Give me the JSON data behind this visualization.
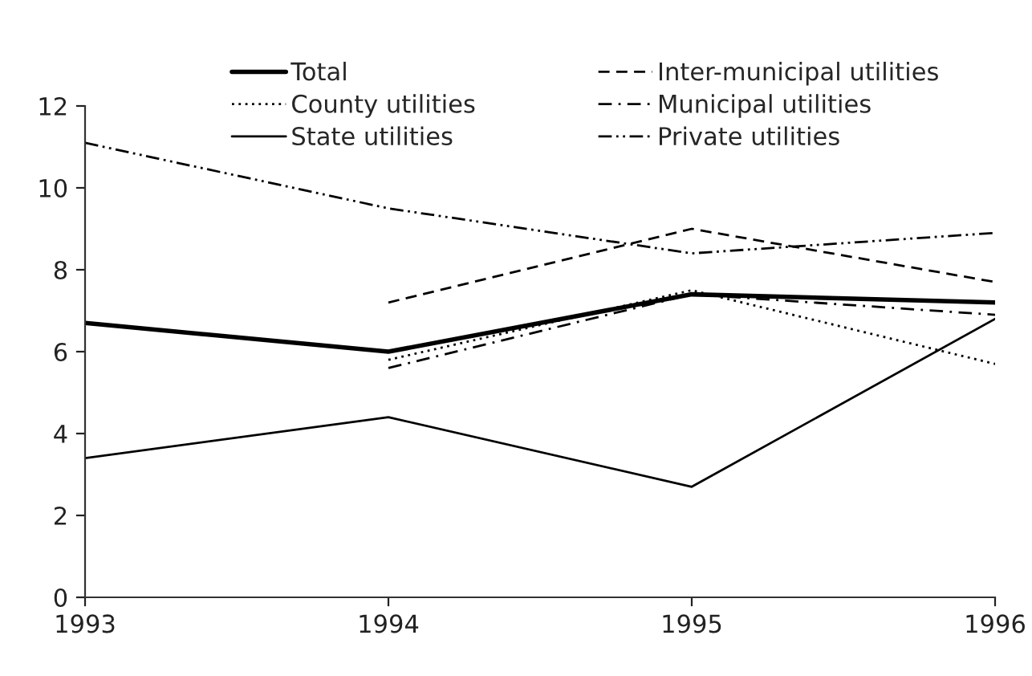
{
  "chart_data": {
    "type": "line",
    "x": [
      1993,
      1994,
      1995,
      1996
    ],
    "xlim": [
      1993,
      1996
    ],
    "xticks": [
      1993,
      1994,
      1995,
      1996
    ],
    "ylim": [
      0,
      12
    ],
    "yticks": [
      0,
      2,
      4,
      6,
      8,
      10,
      12
    ],
    "grid": false,
    "legend": "top",
    "marker": "none",
    "series": [
      {
        "name": "Total",
        "color": "#000000",
        "line_style": "solid",
        "values": [
          6.7,
          6.0,
          7.4,
          7.2
        ]
      },
      {
        "name": "County utilities",
        "color": "#000000",
        "line_style": "dotted",
        "values": [
          null,
          5.8,
          7.5,
          5.7
        ]
      },
      {
        "name": "State utilities",
        "color": "#000000",
        "line_style": "solid",
        "values": [
          3.4,
          4.4,
          2.7,
          6.8
        ]
      },
      {
        "name": "Inter-municipal utilities",
        "color": "#000000",
        "line_style": "dashed",
        "values": [
          null,
          7.2,
          9.0,
          7.7
        ]
      },
      {
        "name": "Municipal utilities",
        "color": "#000000",
        "line_style": "dashdot",
        "values": [
          null,
          5.6,
          7.4,
          6.9
        ]
      },
      {
        "name": "Private utilities",
        "color": "#000000",
        "line_style": "dashdotdot",
        "values": [
          11.1,
          9.5,
          8.4,
          8.9
        ]
      }
    ]
  }
}
